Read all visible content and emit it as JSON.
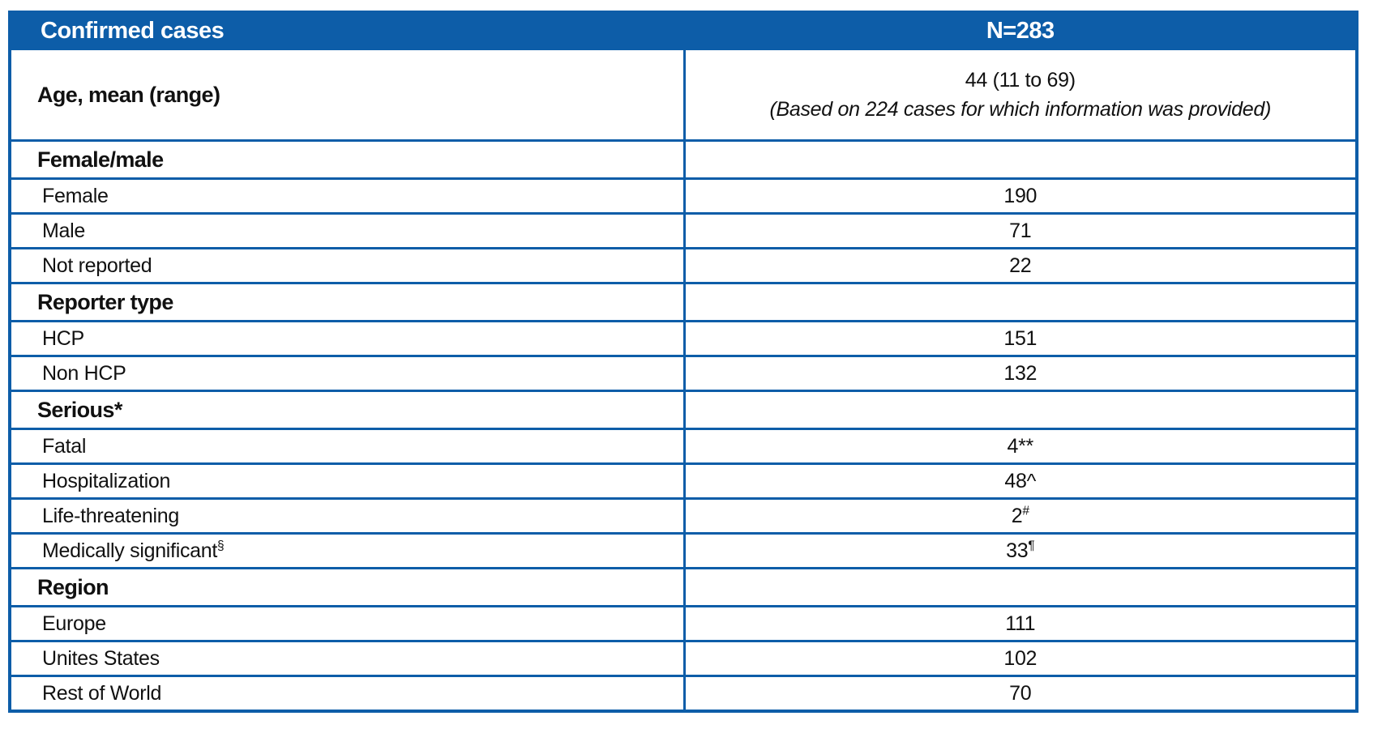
{
  "title": "Confirmed cases summary table",
  "colors": {
    "accent_blue": "#0d5da8",
    "header_text": "#ffffff",
    "body_text": "#111111"
  },
  "table": {
    "header": {
      "label": "Confirmed cases",
      "value": "N=283"
    },
    "age_row": {
      "label": "Age, mean (range)",
      "value_main": "44 (11 to 69)",
      "value_note": "(Based on 224 cases for which information was provided)"
    },
    "sections": [
      {
        "title": "Female/male",
        "rows": [
          {
            "label": "Female",
            "value": "190"
          },
          {
            "label": "Male",
            "value": "71"
          },
          {
            "label": "Not reported",
            "value": "22"
          }
        ]
      },
      {
        "title": "Reporter type",
        "rows": [
          {
            "label": "HCP",
            "value": "151"
          },
          {
            "label": "Non HCP",
            "value": "132"
          }
        ]
      },
      {
        "title": "Serious*",
        "rows": [
          {
            "label": "Fatal",
            "value": "4**"
          },
          {
            "label": "Hospitalization",
            "value": "48^"
          },
          {
            "label": "Life-threatening",
            "value": "2",
            "value_sup": "#"
          },
          {
            "label": "Medically significant",
            "label_sup": "§",
            "value": "33",
            "value_sup": "¶"
          }
        ]
      },
      {
        "title": "Region",
        "rows": [
          {
            "label": "Europe",
            "value": "111"
          },
          {
            "label": "Unites States",
            "value": "102"
          },
          {
            "label": "Rest of World",
            "value": "70"
          }
        ]
      }
    ]
  }
}
